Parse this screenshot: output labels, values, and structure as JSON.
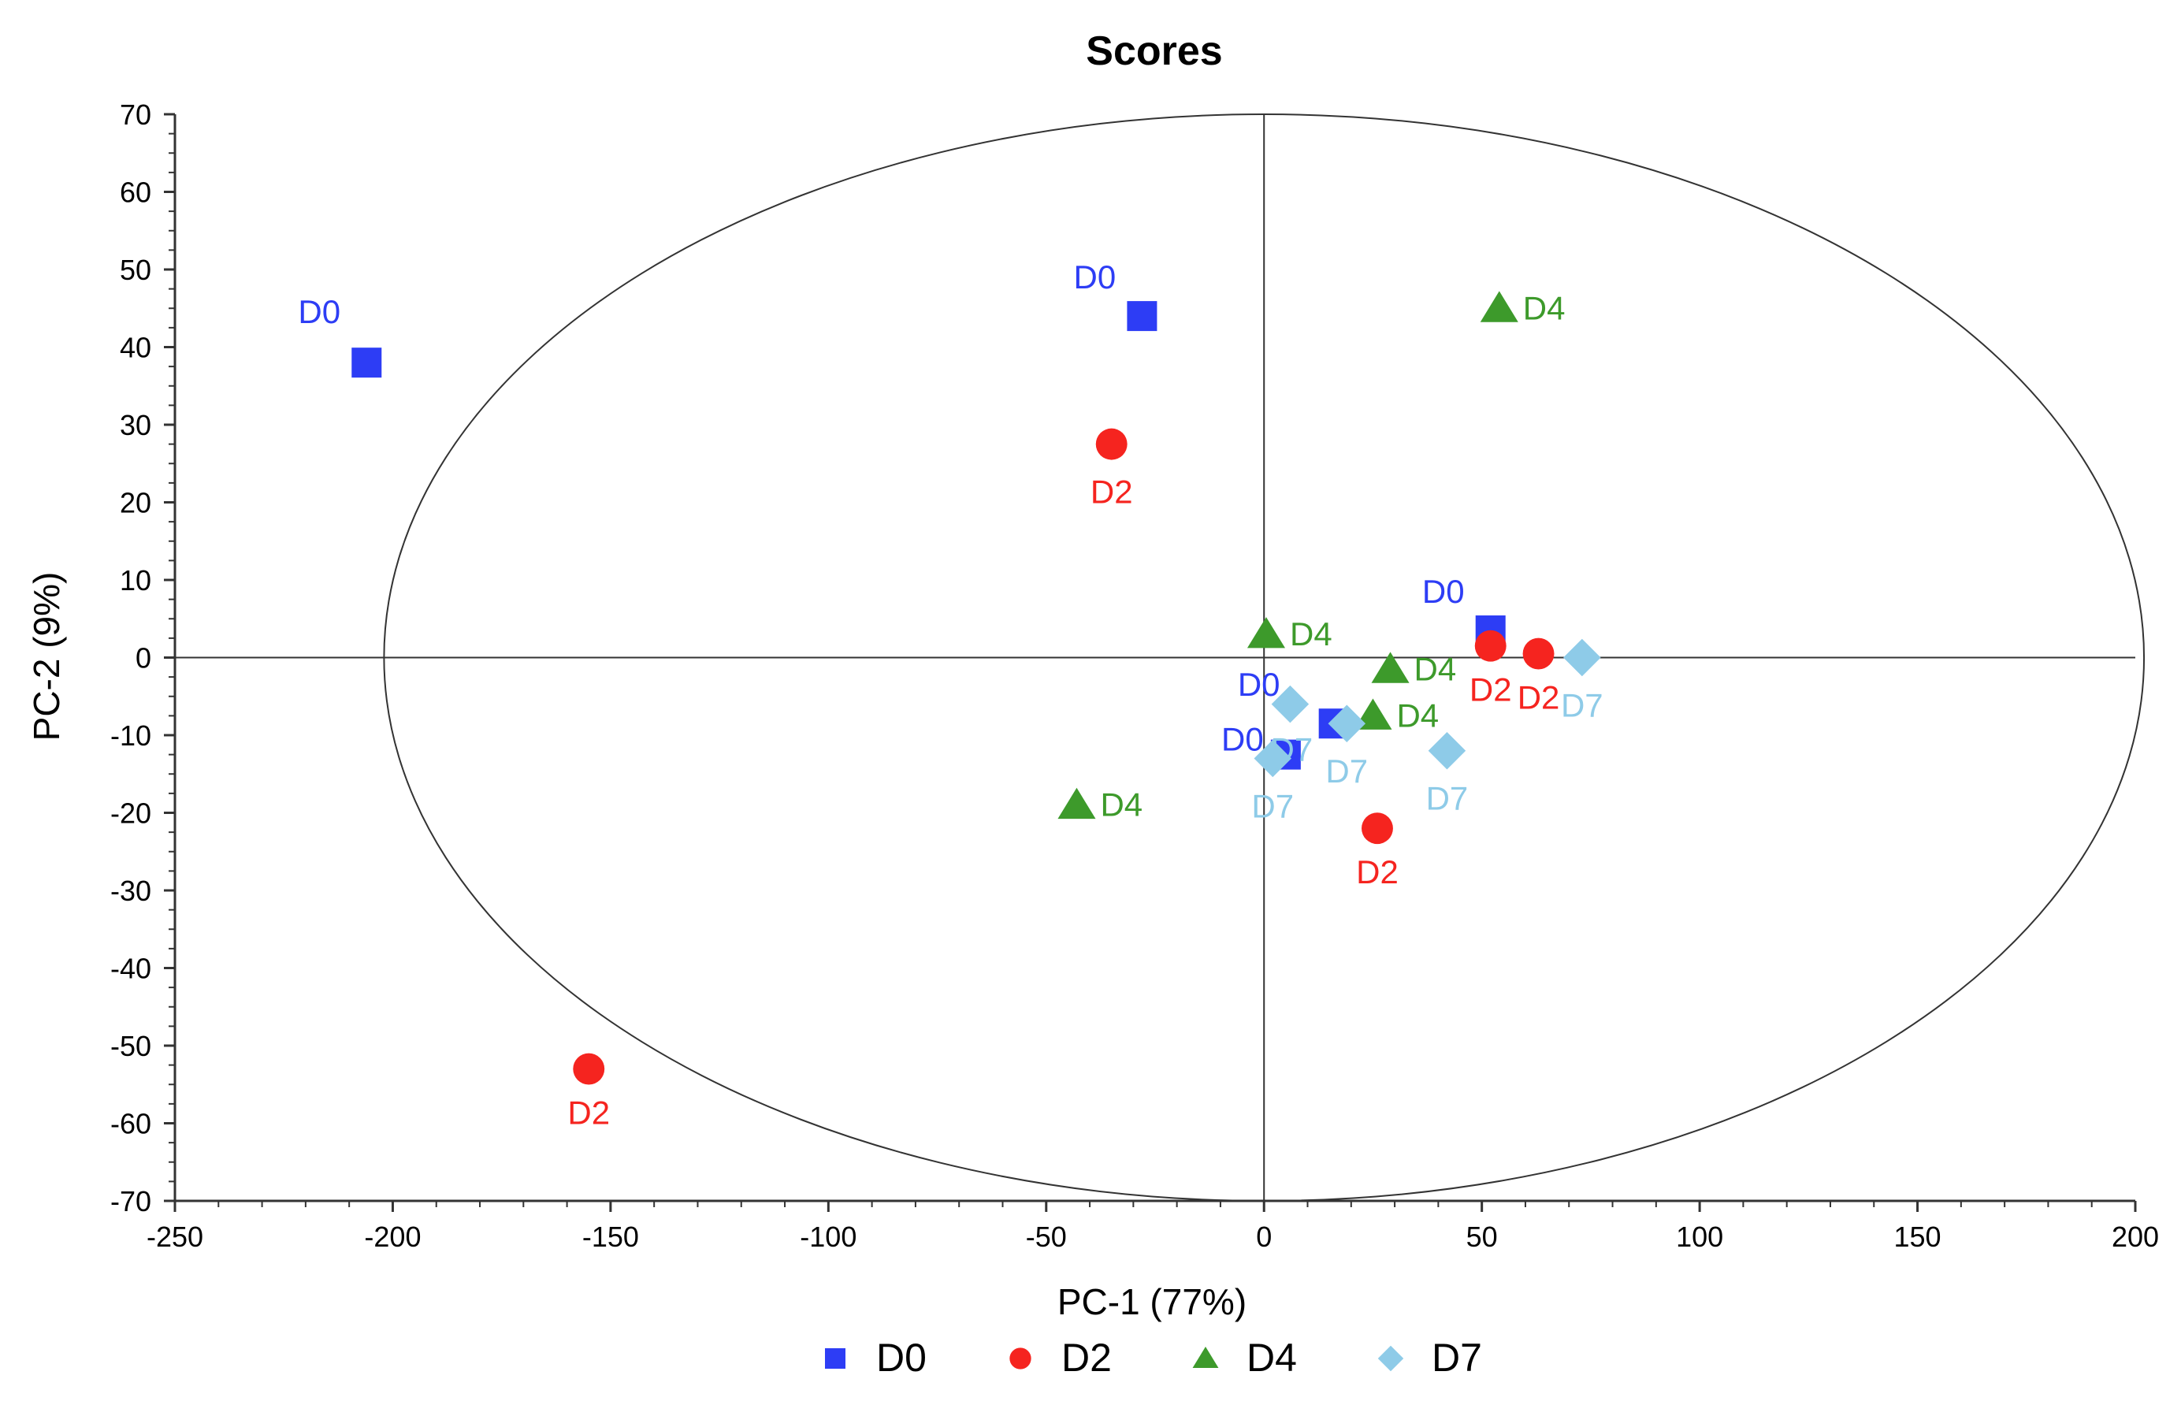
{
  "chart_data": {
    "type": "scatter",
    "title": "Scores",
    "xlabel": "PC-1 (77%)",
    "ylabel": "PC-2 (9%)",
    "xlim": [
      -250,
      200
    ],
    "ylim": [
      -70,
      70
    ],
    "xticks": [
      -250,
      -200,
      -150,
      -100,
      -50,
      0,
      50,
      100,
      150,
      200
    ],
    "yticks": [
      70,
      60,
      50,
      40,
      30,
      20,
      10,
      0,
      -10,
      -20,
      -30,
      -40,
      -50,
      -60,
      -70
    ],
    "grid": false,
    "confidence_ellipse": {
      "cx": 0,
      "cy": 0,
      "rx": 202,
      "ry": 70
    },
    "legend_position": "bottom",
    "series": [
      {
        "name": "D0",
        "marker": "square",
        "color": "#2d3df5",
        "points": [
          {
            "x": -206,
            "y": 38,
            "label": "D0"
          },
          {
            "x": -28,
            "y": 44,
            "label": "D0"
          },
          {
            "x": 52,
            "y": 3.5,
            "label": "D0"
          },
          {
            "x": 16,
            "y": -8.5,
            "label": "D0"
          },
          {
            "x": 5,
            "y": -12.5,
            "label": "D0"
          }
        ]
      },
      {
        "name": "D2",
        "marker": "circle",
        "color": "#f5241f",
        "points": [
          {
            "x": -35,
            "y": 27.5,
            "label": "D2"
          },
          {
            "x": 52,
            "y": 1.5,
            "label": "D2"
          },
          {
            "x": 63,
            "y": 0.5,
            "label": "D2"
          },
          {
            "x": 26,
            "y": -22,
            "label": "D2"
          },
          {
            "x": -155,
            "y": -53,
            "label": "D2"
          }
        ]
      },
      {
        "name": "D4",
        "marker": "triangle",
        "color": "#3d9a2b",
        "points": [
          {
            "x": 54,
            "y": 45,
            "label": "D4"
          },
          {
            "x": 0.5,
            "y": 3,
            "label": "D4"
          },
          {
            "x": 29,
            "y": -1.5,
            "label": "D4"
          },
          {
            "x": 25,
            "y": -7.5,
            "label": "D4"
          },
          {
            "x": -43,
            "y": -19,
            "label": "D4"
          }
        ]
      },
      {
        "name": "D7",
        "marker": "diamond",
        "color": "#8ecbe8",
        "points": [
          {
            "x": 73,
            "y": 0,
            "label": "D7"
          },
          {
            "x": 6,
            "y": -6,
            "label": "D7"
          },
          {
            "x": 19,
            "y": -8.5,
            "label": "D7"
          },
          {
            "x": 42,
            "y": -12,
            "label": "D7"
          },
          {
            "x": 2,
            "y": -13,
            "label": "D7"
          }
        ]
      }
    ]
  }
}
